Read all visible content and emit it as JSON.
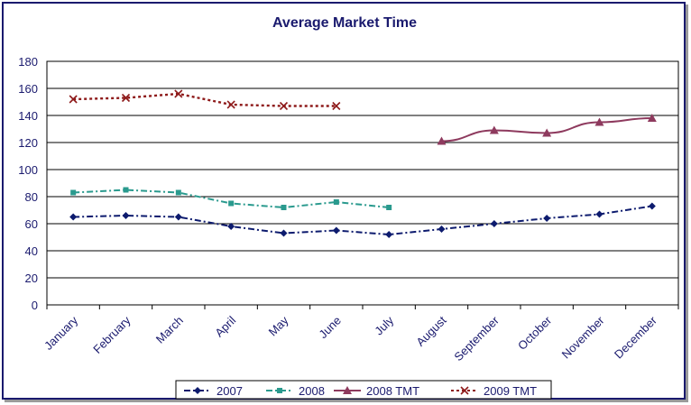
{
  "chart_data": {
    "type": "line",
    "title": "Average Market Time",
    "xlabel": "",
    "ylabel": "",
    "categories": [
      "January",
      "February",
      "March",
      "April",
      "May",
      "June",
      "July",
      "August",
      "September",
      "October",
      "November",
      "December"
    ],
    "ylim": [
      0,
      180
    ],
    "yticks": [
      "0",
      "20",
      "40",
      "60",
      "80",
      "100",
      "120",
      "140",
      "160",
      "180"
    ],
    "grid": true,
    "legend_position": "bottom",
    "series": [
      {
        "name": "2007",
        "color": "#0d1b6e",
        "dash": "dashdot",
        "marker": "diamond",
        "values": [
          65,
          66,
          65,
          58,
          53,
          55,
          52,
          56,
          60,
          64,
          67,
          73
        ]
      },
      {
        "name": "2008",
        "color": "#2a9a8e",
        "dash": "dashdot",
        "marker": "square",
        "values": [
          83,
          85,
          83,
          75,
          72,
          76,
          72,
          null,
          null,
          null,
          null,
          null
        ]
      },
      {
        "name": "2008 TMT",
        "color": "#8e3a5e",
        "dash": "solid",
        "marker": "triangle",
        "values": [
          null,
          null,
          null,
          null,
          null,
          null,
          null,
          121,
          129,
          127,
          135,
          138
        ]
      },
      {
        "name": "2009 TMT",
        "color": "#8e1a1a",
        "dash": "dotted",
        "marker": "x",
        "values": [
          152,
          153,
          156,
          148,
          147,
          147,
          null,
          null,
          null,
          null,
          null,
          null
        ]
      }
    ]
  }
}
